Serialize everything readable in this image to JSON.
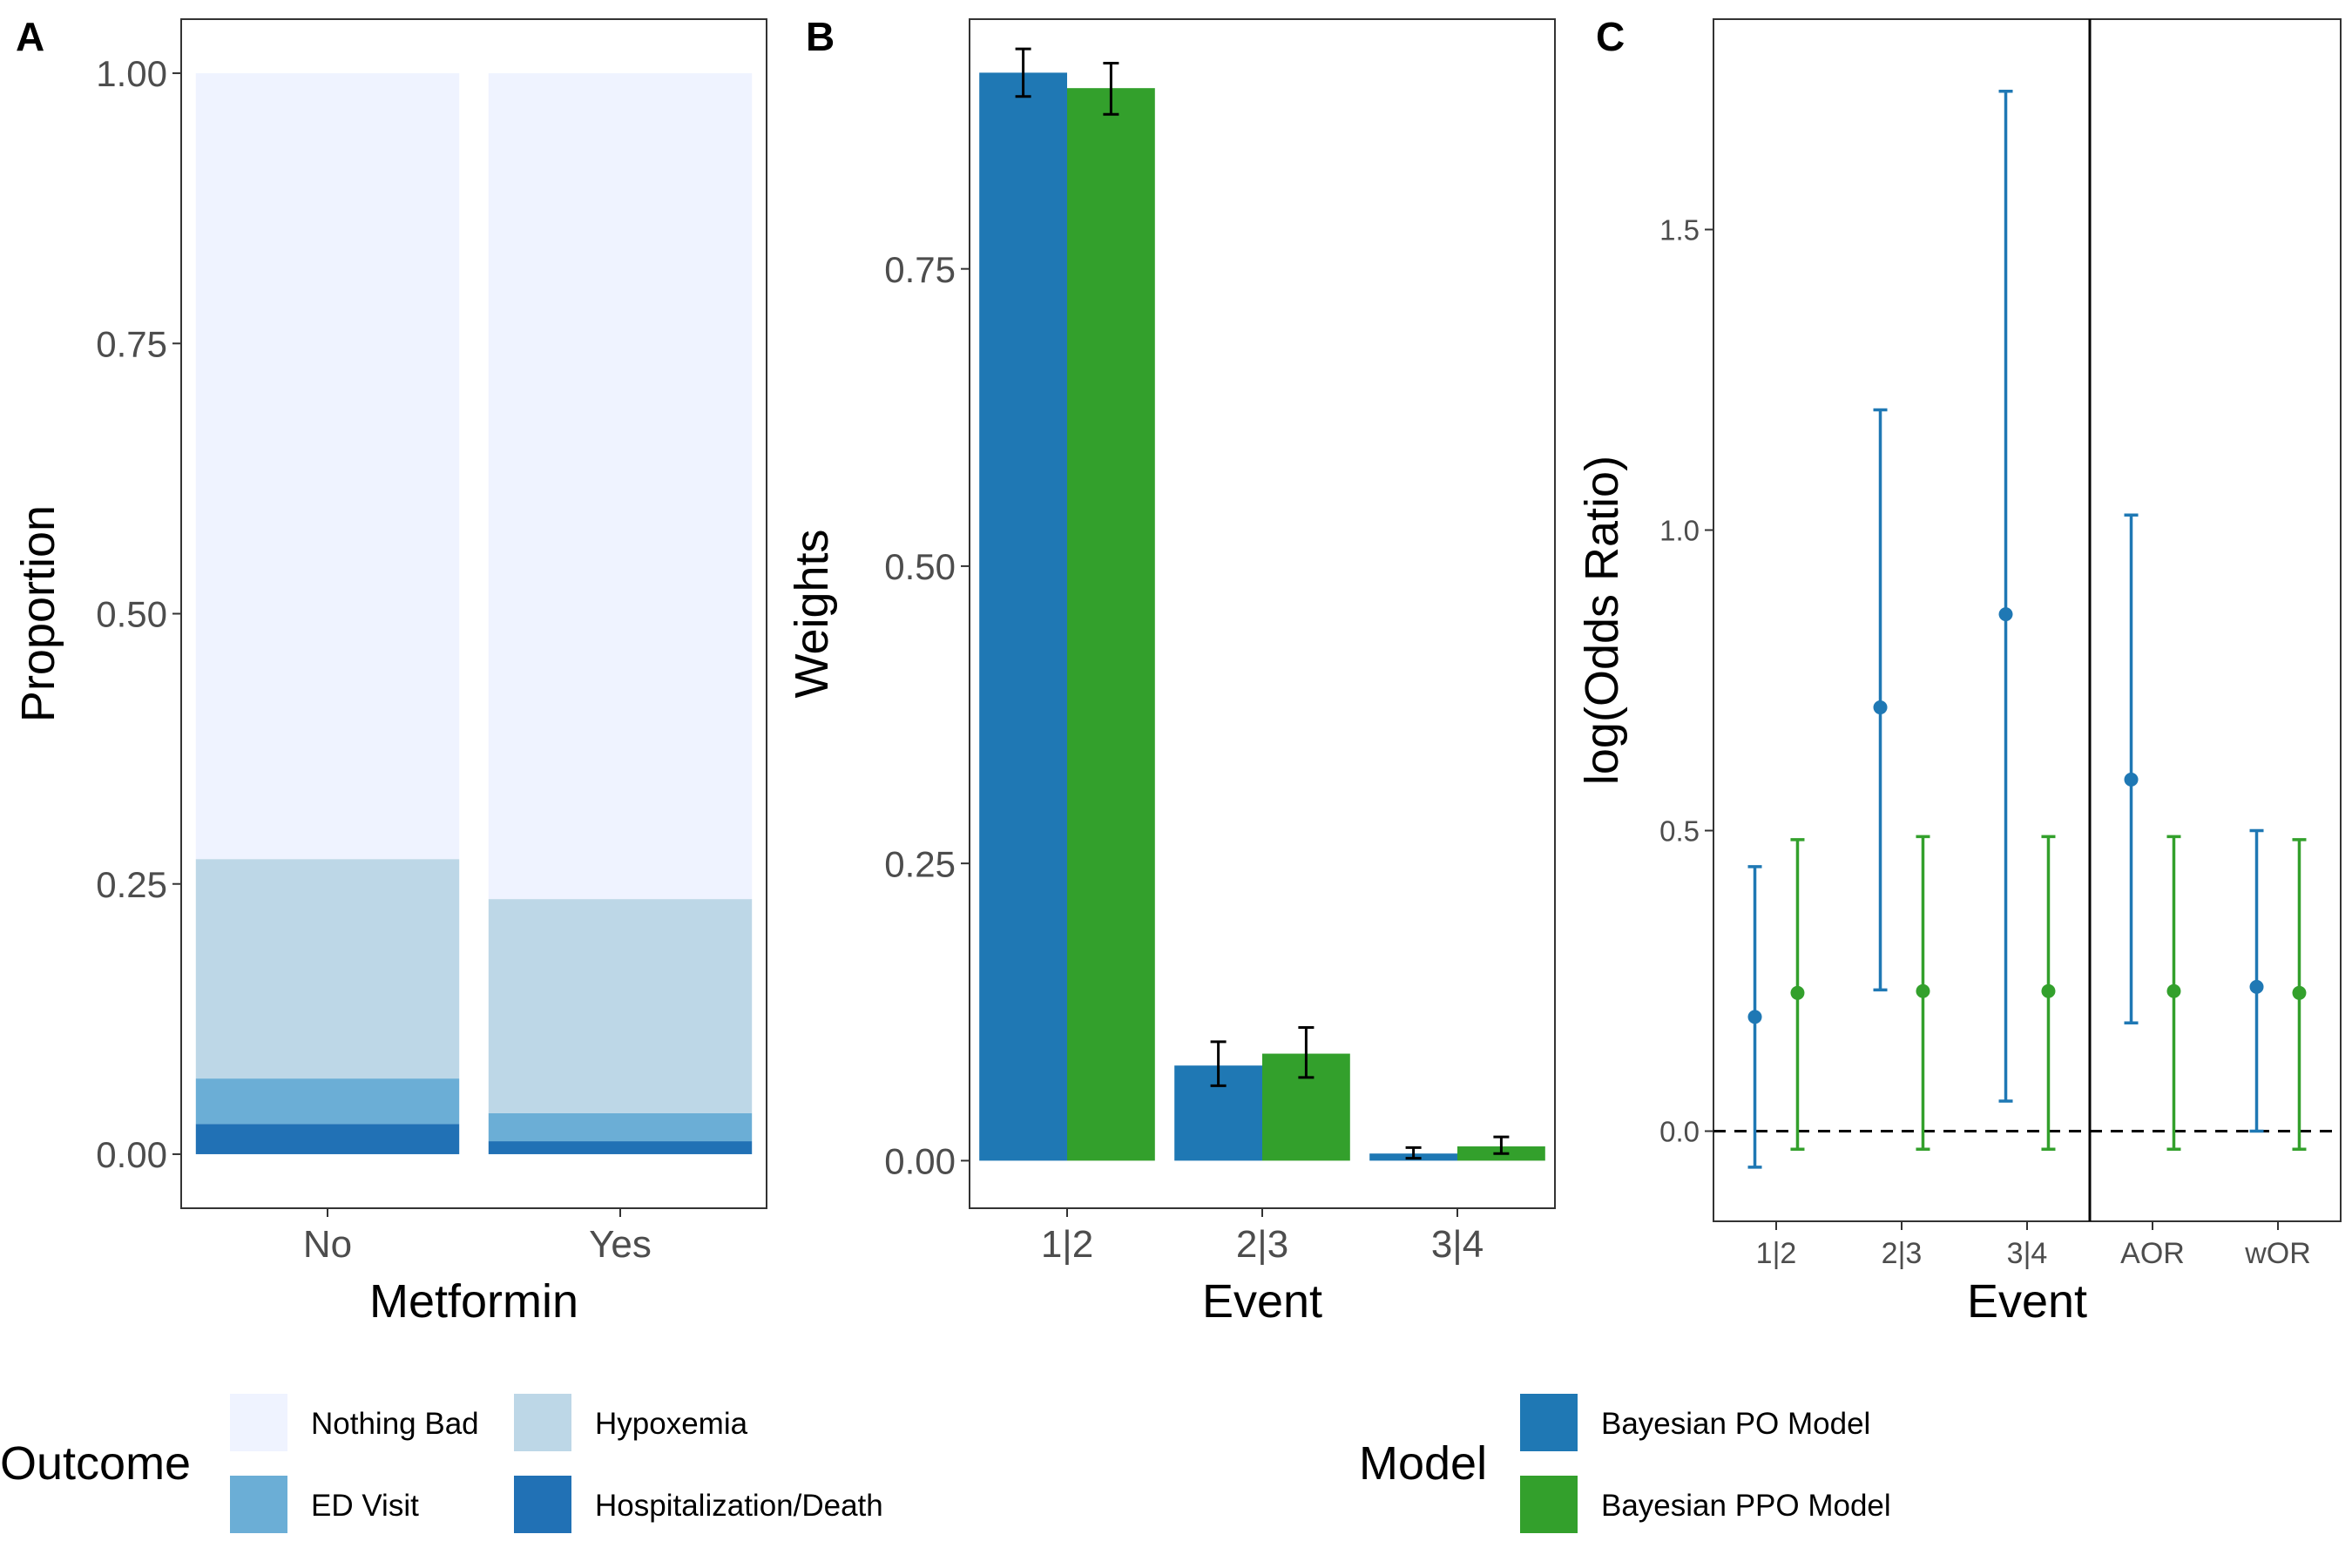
{
  "colors": {
    "outcome": [
      "#EFF3FF",
      "#BDD7E7",
      "#6BAED6",
      "#2171B5"
    ],
    "model": [
      "#1F78B4",
      "#33A02C"
    ],
    "panel_border": "#333333",
    "tick_text": "#4D4D4D",
    "axis_title": "#000000",
    "error_bar": "#000000",
    "ref_line": "#000000"
  },
  "chart_data": [
    {
      "panel_tag": "A",
      "type": "bar",
      "stacked": true,
      "title": "",
      "xlabel": "Metformin",
      "ylabel": "Proportion",
      "categories": [
        "No",
        "Yes"
      ],
      "ylim": [
        -0.05,
        1.05
      ],
      "yticks": [
        0,
        0.25,
        0.5,
        0.75,
        1.0
      ],
      "ytick_labels": [
        "0.00",
        "0.25",
        "0.50",
        "0.75",
        "1.00"
      ],
      "legend_title": "Outcome",
      "series": [
        {
          "name": "Hospitalization/Death",
          "values": [
            0.028,
            0.012
          ]
        },
        {
          "name": "ED Visit",
          "values": [
            0.042,
            0.026
          ]
        },
        {
          "name": "Hypoxemia",
          "values": [
            0.203,
            0.198
          ]
        },
        {
          "name": "Nothing Bad",
          "values": [
            0.727,
            0.764
          ]
        }
      ]
    },
    {
      "panel_tag": "B",
      "type": "bar",
      "grouped": true,
      "title": "",
      "xlabel": "Event",
      "ylabel": "Weights",
      "categories": [
        "1|2",
        "2|3",
        "3|4"
      ],
      "ylim": [
        -0.04,
        0.96
      ],
      "yticks": [
        0,
        0.25,
        0.5,
        0.75
      ],
      "ytick_labels": [
        "0.00",
        "0.25",
        "0.50",
        "0.75"
      ],
      "legend_title": "Model",
      "series": [
        {
          "name": "Bayesian PO Model",
          "values": [
            0.915,
            0.08,
            0.006
          ],
          "lower": [
            0.895,
            0.063,
            0.002
          ],
          "upper": [
            0.935,
            0.1,
            0.011
          ]
        },
        {
          "name": "Bayesian PPO Model",
          "values": [
            0.902,
            0.09,
            0.012
          ],
          "lower": [
            0.88,
            0.07,
            0.006
          ],
          "upper": [
            0.923,
            0.112,
            0.02
          ]
        }
      ]
    },
    {
      "panel_tag": "C",
      "type": "scatter",
      "subtype": "point-range",
      "title": "",
      "xlabel": "Event",
      "ylabel": "log(Odds Ratio)",
      "categories": [
        "1|2",
        "2|3",
        "3|4",
        "AOR",
        "wOR"
      ],
      "ylim": [
        -0.15,
        1.85
      ],
      "yticks": [
        0,
        0.5,
        1.0,
        1.5
      ],
      "ytick_labels": [
        "0.0",
        "0.5",
        "1.0",
        "1.5"
      ],
      "reference_line_y": 0,
      "separator_between": [
        "3|4",
        "AOR"
      ],
      "series": [
        {
          "name": "Bayesian PO Model",
          "values": [
            0.19,
            0.705,
            0.86,
            0.585,
            0.24
          ],
          "lower": [
            -0.06,
            0.235,
            0.05,
            0.18,
            0.0
          ],
          "upper": [
            0.44,
            1.2,
            1.73,
            1.025,
            0.5
          ]
        },
        {
          "name": "Bayesian PPO Model",
          "values": [
            0.23,
            0.233,
            0.233,
            0.233,
            0.23
          ],
          "lower": [
            -0.03,
            -0.03,
            -0.03,
            -0.03,
            -0.03
          ],
          "upper": [
            0.485,
            0.49,
            0.49,
            0.49,
            0.485
          ]
        }
      ]
    }
  ]
}
